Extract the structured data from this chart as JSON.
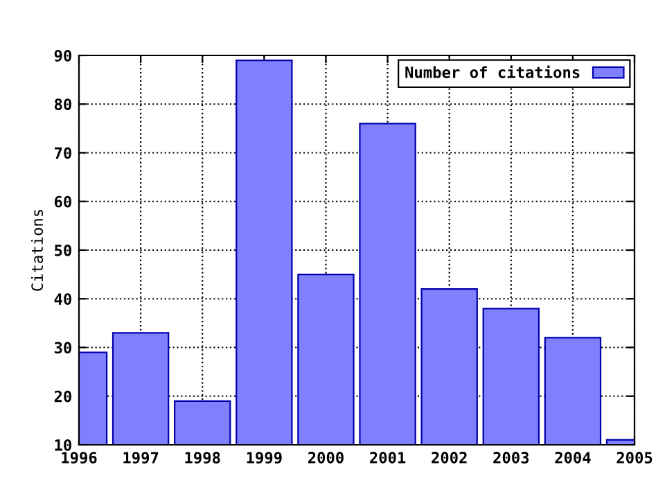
{
  "chart_data": {
    "type": "bar",
    "ylabel": "Citations",
    "x": [
      1996,
      1997,
      1998,
      1999,
      2000,
      2001,
      2002,
      2003,
      2004,
      2005
    ],
    "series": [
      {
        "name": "Number of citations",
        "color": "#8080ff",
        "values": [
          29,
          33,
          19,
          89,
          45,
          76,
          42,
          38,
          32,
          11
        ]
      }
    ],
    "xlim": [
      1996,
      2005
    ],
    "xticks": [
      1996,
      1997,
      1998,
      1999,
      2000,
      2001,
      2002,
      2003,
      2004,
      2005
    ],
    "ylim": [
      10,
      90
    ],
    "yticks": [
      10,
      20,
      30,
      40,
      50,
      60,
      70,
      80,
      90
    ],
    "grid": true,
    "legend": "top right"
  }
}
